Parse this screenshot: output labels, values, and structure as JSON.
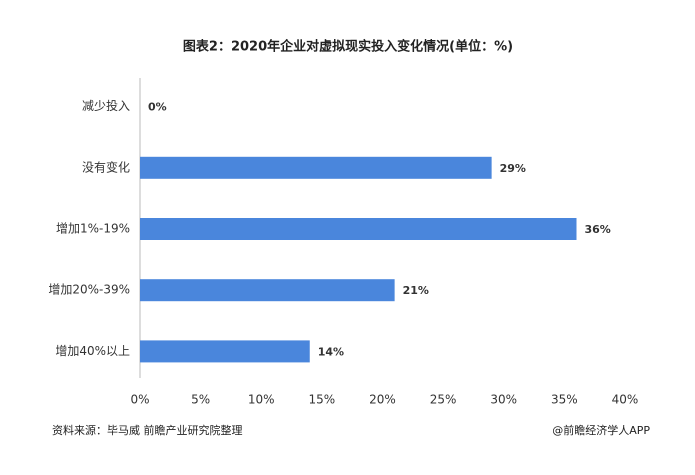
{
  "chart_data": {
    "type": "bar",
    "orientation": "horizontal",
    "title": "图表2：2020年企业对虚拟现实投入变化情况(单位：%)",
    "categories": [
      "减少投入",
      "没有变化",
      "增加1%-19%",
      "增加20%-39%",
      "增加40%以上"
    ],
    "values": [
      0,
      29,
      36,
      21,
      14
    ],
    "value_labels": [
      "0%",
      "29%",
      "36%",
      "21%",
      "14%"
    ],
    "color": "#4a86dc",
    "xlim": [
      0,
      40
    ],
    "xticks": [
      {
        "value": 0,
        "label": "0%"
      },
      {
        "value": 5,
        "label": "5%"
      },
      {
        "value": 10,
        "label": "10%"
      },
      {
        "value": 15,
        "label": "15%"
      },
      {
        "value": 20,
        "label": "20%"
      },
      {
        "value": 25,
        "label": "25%"
      },
      {
        "value": 30,
        "label": "30%"
      },
      {
        "value": 35,
        "label": "35%"
      },
      {
        "value": 40,
        "label": "40%"
      }
    ],
    "grid": false,
    "source": "资料来源：毕马威 前瞻产业研究院整理",
    "credit": "@前瞻经济学人APP"
  }
}
